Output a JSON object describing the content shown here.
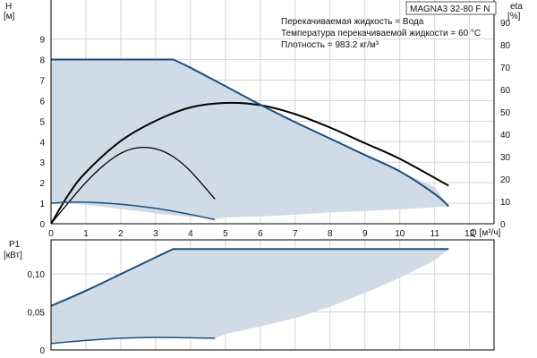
{
  "chart_data": [
    {
      "type": "line",
      "title": "MAGNA3 32-80 F N",
      "notes": [
        "Перекачиваемая жидкость = Вода",
        "Температура перекачиваемой жидкости = 60 °C",
        "Плотность = 983.2 кг/м³"
      ],
      "ylabel_left": [
        "H",
        "[м]"
      ],
      "ylabel_right": [
        "eta",
        "[%]"
      ],
      "xlabel": "Q [м³/ч]",
      "xlim": [
        0,
        12.7
      ],
      "ylim": [
        0,
        10.9
      ],
      "ylim_right": [
        0,
        100
      ],
      "x_ticks": [
        0,
        1,
        2,
        3,
        4,
        5,
        6,
        7,
        8,
        9,
        10,
        11,
        12
      ],
      "y_ticks": [
        0,
        1,
        2,
        3,
        4,
        5,
        6,
        7,
        8,
        9
      ],
      "y_ticks_right": [
        0,
        10,
        20,
        30,
        40,
        50,
        60,
        70,
        80,
        90
      ],
      "grid": true,
      "colors": {
        "region": "#cfdbe6",
        "pump_curve": "#1f4e7a",
        "efficiency": "#000000"
      },
      "series": [
        {
          "role": "operating-area",
          "x": [
            0,
            3.5,
            4.0,
            5.0,
            6.0,
            7.0,
            8.0,
            9.0,
            10.0,
            11.0,
            11.4,
            10.0,
            8.0,
            7.0,
            6.0,
            5.0,
            4.7,
            4.0,
            3.0,
            2.0,
            1.0,
            0.5,
            0
          ],
          "y": [
            8,
            8,
            7.6,
            6.7,
            5.8,
            4.95,
            4.15,
            3.35,
            2.55,
            1.8,
            0.85,
            0.7,
            0.55,
            0.45,
            0.35,
            0.3,
            0.25,
            0.33,
            0.5,
            0.72,
            0.92,
            0.98,
            1.0
          ]
        },
        {
          "role": "max-curve",
          "x": [
            0,
            3.5,
            4.0,
            5.0,
            6.0,
            7.0,
            8.0,
            9.0,
            10.0,
            11.0,
            11.4
          ],
          "y": [
            8,
            8,
            7.6,
            6.7,
            5.8,
            4.95,
            4.15,
            3.35,
            2.55,
            1.45,
            0.85
          ]
        },
        {
          "role": "min-curve",
          "x": [
            0,
            0.5,
            1.0,
            2.0,
            3.0,
            4.0,
            4.7
          ],
          "y": [
            1.0,
            1.05,
            1.05,
            0.95,
            0.75,
            0.45,
            0.2
          ]
        },
        {
          "role": "efficiency-max",
          "x": [
            0,
            0.5,
            1.0,
            2.0,
            3.0,
            4.0,
            5.0,
            6.0,
            7.0,
            8.0,
            9.0,
            10.0,
            11.4
          ],
          "y_right": [
            0,
            13,
            23,
            37,
            46,
            52,
            54,
            53,
            49,
            43,
            36,
            29,
            17
          ]
        },
        {
          "role": "efficiency-min",
          "x": [
            0,
            0.5,
            1.0,
            1.5,
            2.0,
            2.5,
            3.0,
            3.5,
            4.0,
            4.7
          ],
          "y_right": [
            0,
            9.5,
            18.5,
            26,
            31.5,
            34,
            33.5,
            30,
            23.5,
            11
          ]
        }
      ]
    },
    {
      "type": "line",
      "ylabel": [
        "P1",
        "[кВт]"
      ],
      "xlim": [
        0,
        12.7
      ],
      "ylim": [
        0,
        0.145
      ],
      "y_ticks": [
        0,
        0.05,
        0.1
      ],
      "y_tick_labels": [
        "0",
        "0,05",
        "0,10"
      ],
      "grid": true,
      "series": [
        {
          "role": "power-area",
          "x": [
            0,
            3.5,
            11.4,
            11.0,
            10.0,
            9.0,
            8.0,
            7.0,
            6.0,
            5.0,
            4.7,
            4.0,
            3.0,
            2.0,
            1.0,
            0
          ],
          "y": [
            0.058,
            0.133,
            0.133,
            0.118,
            0.095,
            0.075,
            0.057,
            0.042,
            0.031,
            0.021,
            0.0155,
            0.016,
            0.0165,
            0.0155,
            0.0125,
            0.0085
          ]
        },
        {
          "role": "power-max",
          "x": [
            0,
            1.0,
            2.0,
            3.0,
            3.5,
            11.4
          ],
          "y": [
            0.058,
            0.078,
            0.1,
            0.122,
            0.133,
            0.133
          ]
        },
        {
          "role": "power-min",
          "x": [
            0,
            1.0,
            2.0,
            3.0,
            4.0,
            4.7
          ],
          "y": [
            0.0085,
            0.0125,
            0.0155,
            0.0165,
            0.016,
            0.0155
          ]
        }
      ]
    }
  ]
}
